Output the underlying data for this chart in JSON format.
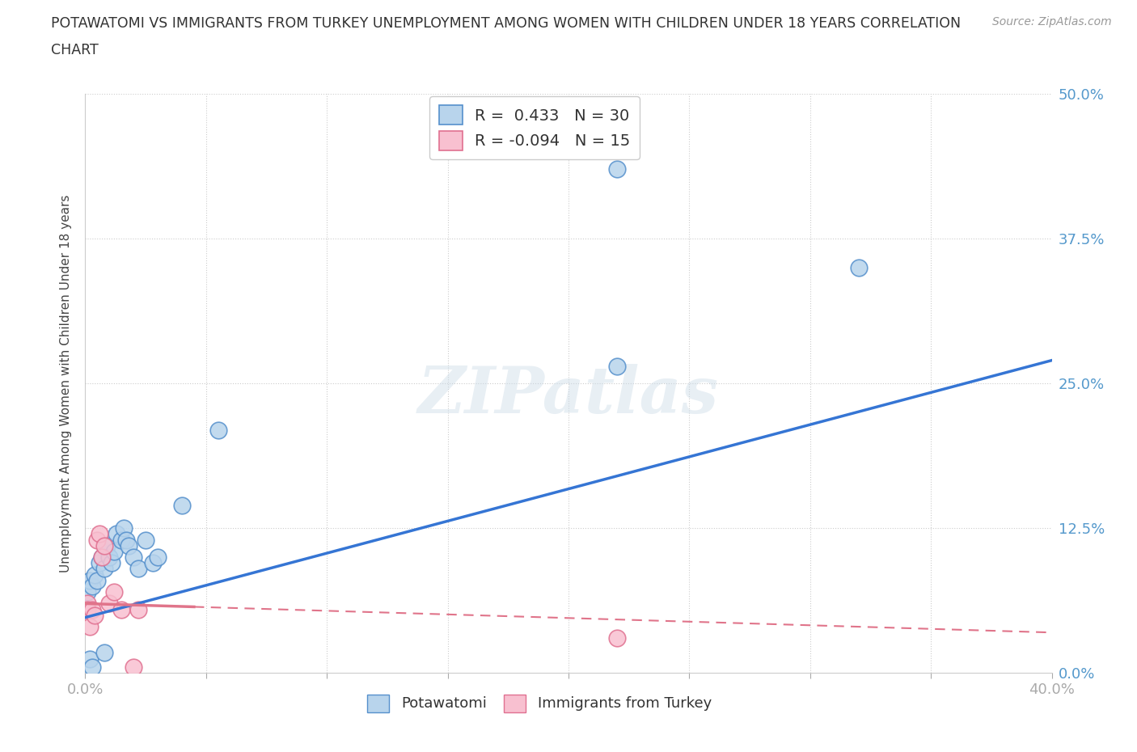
{
  "title_line1": "POTAWATOMI VS IMMIGRANTS FROM TURKEY UNEMPLOYMENT AMONG WOMEN WITH CHILDREN UNDER 18 YEARS CORRELATION",
  "title_line2": "CHART",
  "source": "Source: ZipAtlas.com",
  "ylabel": "Unemployment Among Women with Children Under 18 years",
  "watermark": "ZIPatlas",
  "pot_color_face": "#b8d4ec",
  "pot_color_edge": "#5590cc",
  "tur_color_face": "#f8c0d0",
  "tur_color_edge": "#e07090",
  "trend_blue": "#3575d4",
  "trend_pink": "#e0748a",
  "xlim": [
    0.0,
    0.4
  ],
  "ylim": [
    0.0,
    0.5
  ],
  "yticks": [
    0.0,
    0.125,
    0.25,
    0.375,
    0.5
  ],
  "ytick_right_labels": [
    "0.0%",
    "12.5%",
    "25.0%",
    "37.5%",
    "50.0%"
  ],
  "xticks": [
    0.0,
    0.05,
    0.1,
    0.15,
    0.2,
    0.25,
    0.3,
    0.35,
    0.4
  ],
  "xtick_labels": [
    "0.0%",
    "",
    "",
    "",
    "",
    "",
    "",
    "",
    "40.0%"
  ],
  "legend_r1_label": "R =  0.433   N = 30",
  "legend_r2_label": "R = -0.094   N = 15",
  "pot_x": [
    0.001,
    0.002,
    0.003,
    0.004,
    0.005,
    0.006,
    0.007,
    0.008,
    0.009,
    0.01,
    0.011,
    0.012,
    0.013,
    0.015,
    0.016,
    0.017,
    0.018,
    0.02,
    0.022,
    0.025,
    0.028,
    0.03,
    0.04,
    0.055,
    0.22,
    0.32,
    0.002,
    0.003,
    0.008,
    0.22
  ],
  "pot_y": [
    0.07,
    0.08,
    0.075,
    0.085,
    0.08,
    0.095,
    0.1,
    0.09,
    0.11,
    0.1,
    0.095,
    0.105,
    0.12,
    0.115,
    0.125,
    0.115,
    0.11,
    0.1,
    0.09,
    0.115,
    0.095,
    0.1,
    0.145,
    0.21,
    0.435,
    0.35,
    0.012,
    0.005,
    0.018,
    0.265
  ],
  "tur_x": [
    0.001,
    0.001,
    0.002,
    0.003,
    0.004,
    0.005,
    0.006,
    0.007,
    0.008,
    0.01,
    0.012,
    0.015,
    0.02,
    0.022,
    0.22
  ],
  "tur_y": [
    0.06,
    0.055,
    0.04,
    0.055,
    0.05,
    0.115,
    0.12,
    0.1,
    0.11,
    0.06,
    0.07,
    0.055,
    0.005,
    0.055,
    0.03
  ],
  "trend_pot_x0": 0.0,
  "trend_pot_y0": 0.048,
  "trend_pot_x1": 0.4,
  "trend_pot_y1": 0.27,
  "trend_tur_x0": 0.0,
  "trend_tur_y0": 0.06,
  "trend_tur_x1": 0.4,
  "trend_tur_y1": 0.035,
  "trend_tur_solid_end_x": 0.045,
  "bg_color": "#ffffff",
  "grid_color": "#cccccc",
  "tick_label_color": "#5599cc",
  "title_color": "#333333",
  "ylabel_color": "#444444",
  "source_color": "#999999"
}
